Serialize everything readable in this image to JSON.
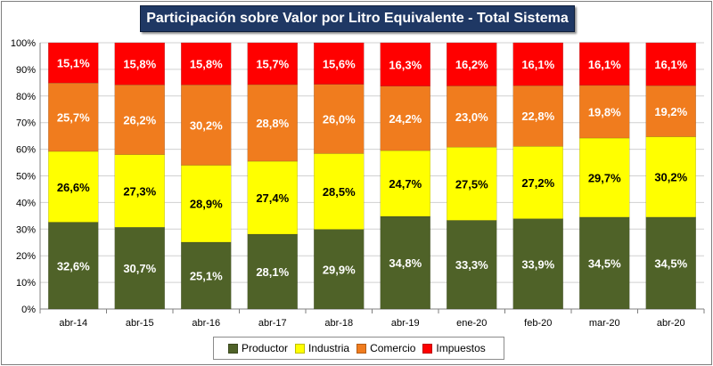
{
  "chart_data": {
    "type": "bar",
    "stacked": true,
    "percent": true,
    "title": "Participación sobre Valor por Litro Equivalente - Total Sistema",
    "categories": [
      "abr-14",
      "abr-15",
      "abr-16",
      "abr-17",
      "abr-18",
      "abr-19",
      "ene-20",
      "feb-20",
      "mar-20",
      "abr-20"
    ],
    "yticks": [
      "0%",
      "10%",
      "20%",
      "30%",
      "40%",
      "50%",
      "60%",
      "70%",
      "80%",
      "90%",
      "100%"
    ],
    "ylim": [
      0,
      100
    ],
    "grid": true,
    "legend_position": "bottom",
    "series": [
      {
        "name": "Productor",
        "color": "#4f6228",
        "text_color": "#ffffff",
        "values": [
          32.6,
          30.7,
          25.1,
          28.1,
          29.9,
          34.8,
          33.3,
          33.9,
          34.5,
          34.5
        ],
        "labels": [
          "32,6%",
          "30,7%",
          "25,1%",
          "28,1%",
          "29,9%",
          "34,8%",
          "33,3%",
          "33,9%",
          "34,5%",
          "34,5%"
        ]
      },
      {
        "name": "Industria",
        "color": "#ffff00",
        "text_color": "#000000",
        "values": [
          26.6,
          27.3,
          28.9,
          27.4,
          28.5,
          24.7,
          27.5,
          27.2,
          29.7,
          30.2
        ],
        "labels": [
          "26,6%",
          "27,3%",
          "28,9%",
          "27,4%",
          "28,5%",
          "24,7%",
          "27,5%",
          "27,2%",
          "29,7%",
          "30,2%"
        ]
      },
      {
        "name": "Comercio",
        "color": "#f07c1e",
        "text_color": "#ffffff",
        "values": [
          25.7,
          26.2,
          30.2,
          28.8,
          26.0,
          24.2,
          23.0,
          22.8,
          19.8,
          19.2
        ],
        "labels": [
          "25,7%",
          "26,2%",
          "30,2%",
          "28,8%",
          "26,0%",
          "24,2%",
          "23,0%",
          "22,8%",
          "19,8%",
          "19,2%"
        ]
      },
      {
        "name": "Impuestos",
        "color": "#ff0000",
        "text_color": "#ffffff",
        "values": [
          15.1,
          15.8,
          15.8,
          15.7,
          15.6,
          16.3,
          16.2,
          16.1,
          16.1,
          16.1
        ],
        "labels": [
          "15,1%",
          "15,8%",
          "15,8%",
          "15,7%",
          "15,6%",
          "16,3%",
          "16,2%",
          "16,1%",
          "16,1%",
          "16,1%"
        ]
      }
    ]
  }
}
